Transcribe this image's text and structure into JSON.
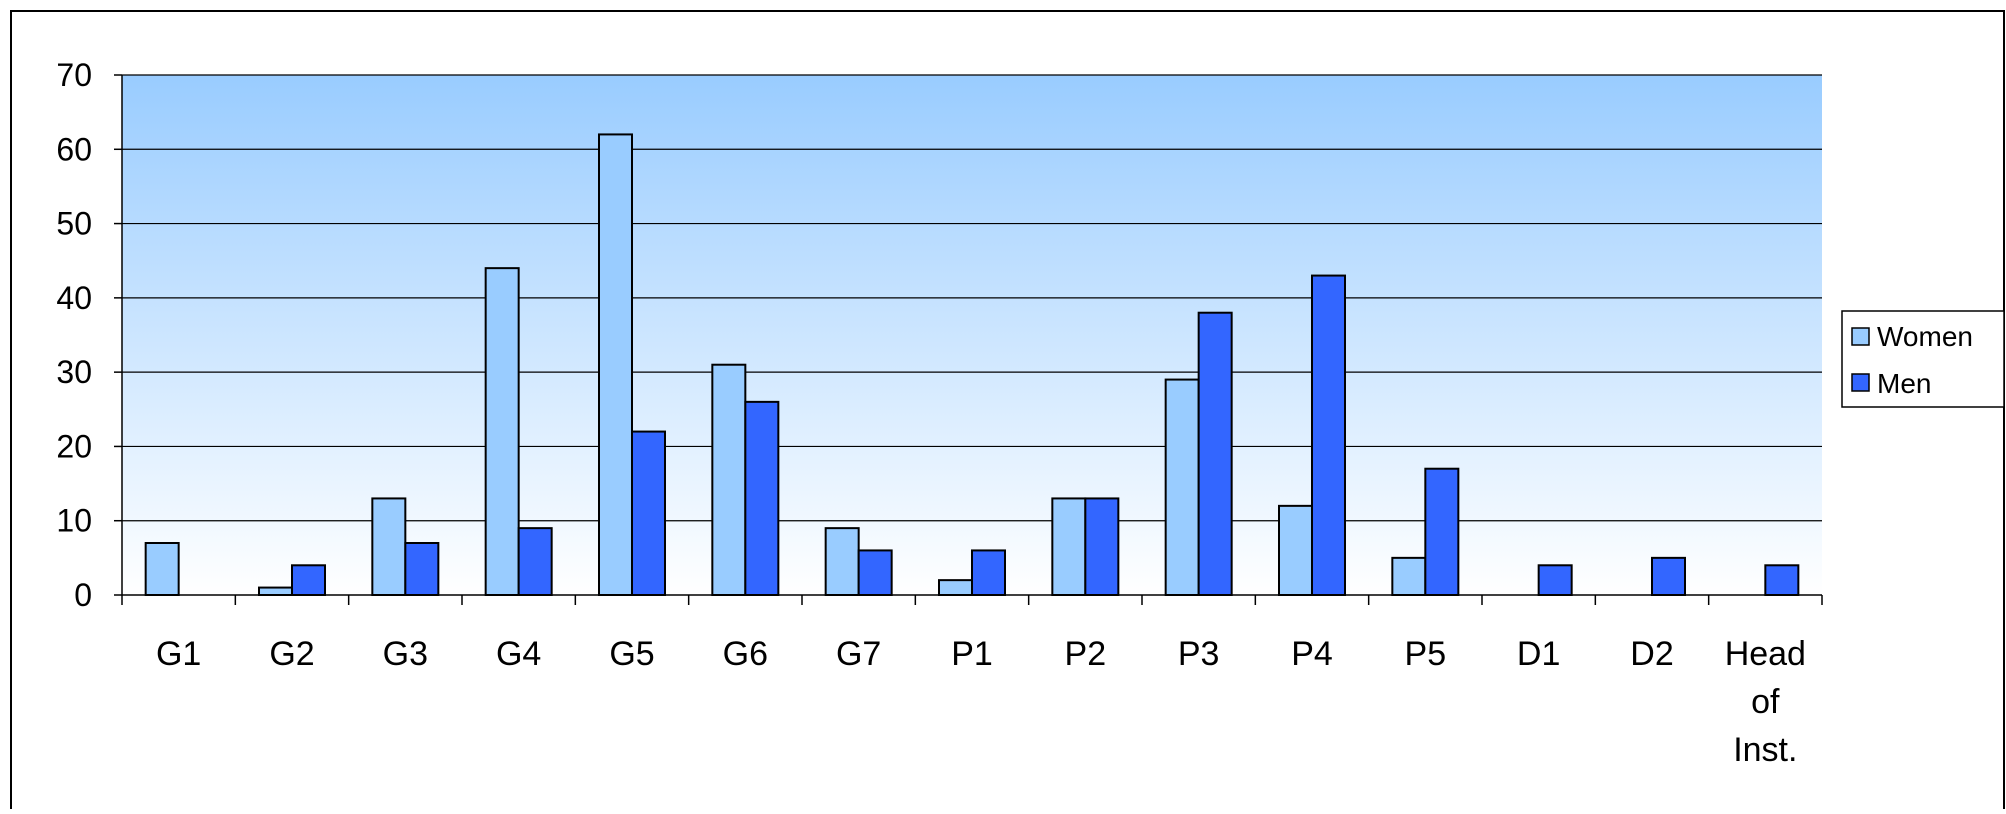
{
  "chart_data": {
    "type": "bar",
    "title": "",
    "xlabel": "",
    "ylabel": "",
    "ylim": [
      0,
      70
    ],
    "yticks": [
      0,
      10,
      20,
      30,
      40,
      50,
      60,
      70
    ],
    "grid": true,
    "legend_position": "right",
    "categories": [
      [
        "G1"
      ],
      [
        "G2"
      ],
      [
        "G3"
      ],
      [
        "G4"
      ],
      [
        "G5"
      ],
      [
        "G6"
      ],
      [
        "G7"
      ],
      [
        "P1"
      ],
      [
        "P2"
      ],
      [
        "P3"
      ],
      [
        "P4"
      ],
      [
        "P5"
      ],
      [
        "D1"
      ],
      [
        "D2"
      ],
      [
        "Head",
        "of",
        "Inst."
      ]
    ],
    "series": [
      {
        "name": "Women",
        "color": "#99ccff",
        "values": [
          7,
          1,
          13,
          44,
          62,
          31,
          9,
          2,
          13,
          29,
          12,
          5,
          0,
          0,
          0
        ]
      },
      {
        "name": "Men",
        "color": "#3366ff",
        "values": [
          0,
          4,
          7,
          9,
          22,
          26,
          6,
          6,
          13,
          38,
          43,
          17,
          4,
          5,
          4
        ]
      }
    ],
    "plot_gradient": {
      "top": "#99ccff",
      "bottom": "#ffffff"
    }
  }
}
